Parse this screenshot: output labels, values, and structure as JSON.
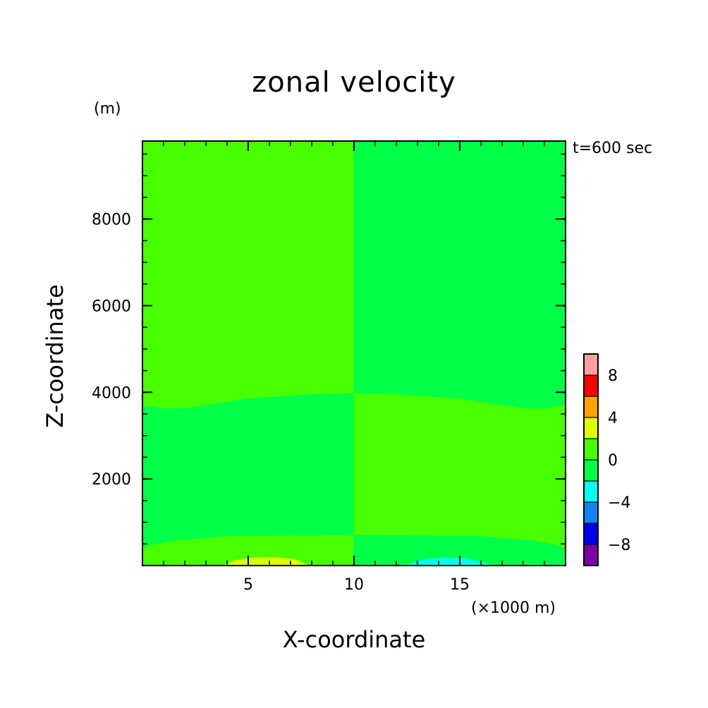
{
  "chart_data": {
    "type": "heatmap",
    "title": "zonal velocity",
    "xlabel": "X-coordinate",
    "ylabel": "Z-coordinate",
    "x_unit": "(×1000 m)",
    "y_unit": "(m)",
    "annotation": "t=600 sec",
    "xlim": [
      0,
      20
    ],
    "ylim": [
      0,
      9800
    ],
    "x_ticks": [
      5,
      10,
      15
    ],
    "y_ticks": [
      2000,
      4000,
      6000,
      8000
    ],
    "x_minor_step": 1,
    "y_minor_step": 500,
    "levels": [
      -10,
      -8,
      -6,
      -4,
      -2,
      0,
      2,
      4,
      6,
      8,
      10
    ],
    "level_colors": [
      "#7a00a8",
      "#0000f0",
      "#1283f0",
      "#00ffee",
      "#00ff47",
      "#47ff00",
      "#dfff00",
      "#ffa200",
      "#ff0000",
      "#ffa0a0"
    ],
    "colorbar_ticks": [
      -8,
      -4,
      0,
      4,
      8
    ],
    "regions": [
      {
        "name": "upper-left",
        "range": [
          0,
          2
        ],
        "polygon": [
          [
            0,
            9800
          ],
          [
            10,
            9800
          ],
          [
            10,
            3980
          ],
          [
            8,
            3950
          ],
          [
            5,
            3850
          ],
          [
            2,
            3620
          ],
          [
            1,
            3620
          ],
          [
            0,
            3700
          ]
        ]
      },
      {
        "name": "upper-right",
        "range": [
          -2,
          0
        ],
        "polygon": [
          [
            10,
            9800
          ],
          [
            20,
            9800
          ],
          [
            20,
            3700
          ],
          [
            19,
            3620
          ],
          [
            18,
            3620
          ],
          [
            15,
            3850
          ],
          [
            12,
            3950
          ],
          [
            10,
            3980
          ]
        ]
      },
      {
        "name": "middle-left",
        "range": [
          -2,
          0
        ],
        "polygon": [
          [
            0,
            3700
          ],
          [
            1,
            3620
          ],
          [
            2,
            3620
          ],
          [
            5,
            3850
          ],
          [
            8,
            3950
          ],
          [
            10,
            3980
          ],
          [
            10,
            700
          ],
          [
            7,
            690
          ],
          [
            4,
            670
          ],
          [
            1.5,
            570
          ],
          [
            0.5,
            480
          ],
          [
            0,
            400
          ]
        ]
      },
      {
        "name": "middle-right",
        "range": [
          0,
          2
        ],
        "polygon": [
          [
            10,
            3980
          ],
          [
            12,
            3950
          ],
          [
            15,
            3850
          ],
          [
            18,
            3620
          ],
          [
            19,
            3620
          ],
          [
            20,
            3700
          ],
          [
            20,
            400
          ],
          [
            19.5,
            480
          ],
          [
            18.5,
            570
          ],
          [
            16,
            670
          ],
          [
            13,
            690
          ],
          [
            10,
            700
          ]
        ]
      },
      {
        "name": "lower-left",
        "range": [
          0,
          2
        ],
        "polygon": [
          [
            0,
            400
          ],
          [
            0.5,
            480
          ],
          [
            1.5,
            570
          ],
          [
            4,
            670
          ],
          [
            7,
            690
          ],
          [
            10,
            700
          ],
          [
            10,
            0
          ],
          [
            0,
            0
          ]
        ]
      },
      {
        "name": "lower-right",
        "range": [
          -2,
          0
        ],
        "polygon": [
          [
            10,
            700
          ],
          [
            13,
            690
          ],
          [
            16,
            670
          ],
          [
            18.5,
            570
          ],
          [
            19.5,
            480
          ],
          [
            20,
            400
          ],
          [
            20,
            0
          ],
          [
            10,
            0
          ]
        ]
      },
      {
        "name": "positive-bulge",
        "range": [
          2,
          4
        ],
        "polygon": [
          [
            3.8,
            0
          ],
          [
            4.4,
            120
          ],
          [
            5.3,
            180
          ],
          [
            6.4,
            185
          ],
          [
            7.3,
            130
          ],
          [
            7.8,
            0
          ]
        ]
      },
      {
        "name": "negative-bulge",
        "range": [
          -4,
          -2
        ],
        "polygon": [
          [
            12.4,
            0
          ],
          [
            13.2,
            130
          ],
          [
            14.2,
            185
          ],
          [
            15.3,
            160
          ],
          [
            16.2,
            60
          ],
          [
            16.4,
            0
          ]
        ]
      }
    ]
  }
}
